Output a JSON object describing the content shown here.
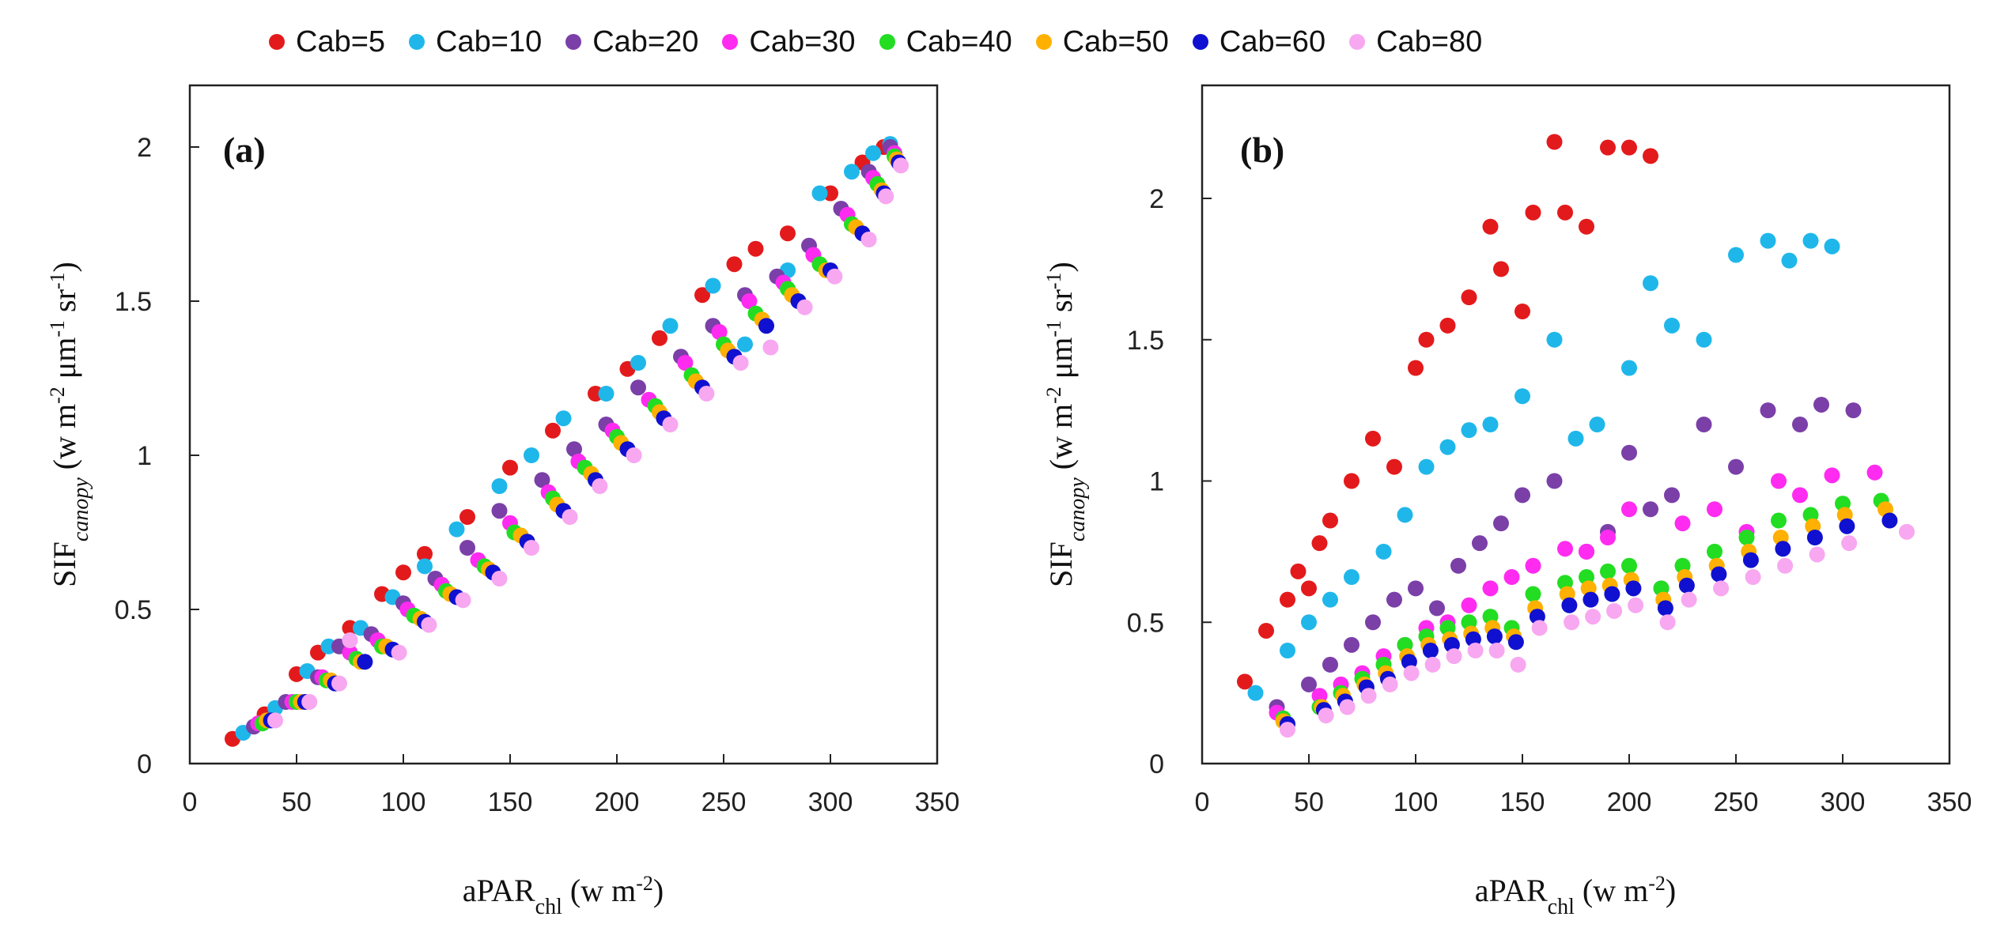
{
  "legend": [
    {
      "label": "Cab=5",
      "color": "#e31a1c"
    },
    {
      "label": "Cab=10",
      "color": "#1fb7ea"
    },
    {
      "label": "Cab=20",
      "color": "#7b3fa8"
    },
    {
      "label": "Cab=30",
      "color": "#ff2bf0"
    },
    {
      "label": "Cab=40",
      "color": "#22dd22"
    },
    {
      "label": "Cab=50",
      "color": "#ffb000"
    },
    {
      "label": "Cab=60",
      "color": "#1010d0"
    },
    {
      "label": "Cab=80",
      "color": "#f7a8f0"
    }
  ],
  "chart_data": [
    {
      "type": "scatter",
      "panel_label": "(a)",
      "xlabel_main": "aPAR",
      "xlabel_sub": "chl",
      "xlabel_unit": " (w m",
      "xlabel_sup": "-2",
      "xlabel_end": ")",
      "ylabel_main": "SIF",
      "ylabel_sub": "canopy",
      "ylabel_unit": " (w m",
      "ylabel_sup1": "-2",
      "ylabel_mid": " μm",
      "ylabel_sup2": "-1",
      "ylabel_mid2": " sr",
      "ylabel_sup3": "-1",
      "ylabel_end": ")",
      "xlim": [
        0,
        350
      ],
      "ylim": [
        0,
        2.2
      ],
      "xticks": [
        0,
        50,
        100,
        150,
        200,
        250,
        300,
        350
      ],
      "xtick_labels": [
        "0",
        "50",
        "100",
        "150",
        "200",
        "250",
        "300",
        "350"
      ],
      "yticks": [
        0,
        0.5,
        1,
        1.5,
        2
      ],
      "ytick_labels": [
        "0",
        "0.5",
        "1",
        "1.5",
        "2"
      ],
      "series": [
        {
          "name": "Cab=5",
          "x": [
            20,
            35,
            50,
            60,
            75,
            90,
            100,
            110,
            130,
            150,
            170,
            190,
            205,
            220,
            240,
            255,
            265,
            280,
            300,
            315,
            325
          ],
          "y": [
            0.08,
            0.16,
            0.29,
            0.36,
            0.44,
            0.55,
            0.62,
            0.68,
            0.8,
            0.96,
            1.08,
            1.2,
            1.28,
            1.38,
            1.52,
            1.62,
            1.67,
            1.72,
            1.85,
            1.95,
            2.0
          ]
        },
        {
          "name": "Cab=10",
          "x": [
            25,
            40,
            55,
            65,
            80,
            95,
            110,
            125,
            145,
            160,
            175,
            195,
            210,
            225,
            245,
            260,
            280,
            295,
            310,
            320,
            328
          ],
          "y": [
            0.1,
            0.18,
            0.3,
            0.38,
            0.44,
            0.54,
            0.64,
            0.76,
            0.9,
            1.0,
            1.12,
            1.2,
            1.3,
            1.42,
            1.55,
            1.36,
            1.6,
            1.85,
            1.92,
            1.98,
            2.01
          ]
        },
        {
          "name": "Cab=20",
          "x": [
            30,
            45,
            60,
            70,
            85,
            100,
            115,
            130,
            145,
            165,
            180,
            195,
            210,
            230,
            245,
            260,
            275,
            290,
            305,
            318,
            328
          ],
          "y": [
            0.12,
            0.2,
            0.28,
            0.38,
            0.42,
            0.52,
            0.6,
            0.7,
            0.82,
            0.92,
            1.02,
            1.1,
            1.22,
            1.32,
            1.42,
            1.52,
            1.58,
            1.68,
            1.8,
            1.92,
            2.0
          ]
        },
        {
          "name": "Cab=30",
          "x": [
            32,
            48,
            62,
            75,
            88,
            102,
            118,
            135,
            150,
            168,
            182,
            198,
            215,
            232,
            248,
            262,
            278,
            292,
            308,
            320,
            330
          ],
          "y": [
            0.13,
            0.2,
            0.28,
            0.36,
            0.4,
            0.5,
            0.58,
            0.66,
            0.78,
            0.88,
            0.98,
            1.08,
            1.18,
            1.3,
            1.4,
            1.5,
            1.56,
            1.65,
            1.78,
            1.9,
            1.98
          ]
        },
        {
          "name": "Cab=40",
          "x": [
            34,
            50,
            64,
            78,
            90,
            105,
            120,
            138,
            152,
            170,
            185,
            200,
            218,
            235,
            250,
            265,
            280,
            295,
            310,
            322,
            330
          ],
          "y": [
            0.13,
            0.2,
            0.27,
            0.34,
            0.38,
            0.48,
            0.56,
            0.64,
            0.75,
            0.86,
            0.96,
            1.06,
            1.16,
            1.26,
            1.36,
            1.46,
            1.54,
            1.62,
            1.75,
            1.88,
            1.97
          ]
        },
        {
          "name": "Cab=50",
          "x": [
            36,
            52,
            66,
            80,
            92,
            108,
            122,
            140,
            155,
            172,
            188,
            202,
            220,
            237,
            252,
            268,
            282,
            298,
            312,
            324,
            331
          ],
          "y": [
            0.14,
            0.2,
            0.27,
            0.33,
            0.38,
            0.47,
            0.55,
            0.63,
            0.74,
            0.84,
            0.94,
            1.04,
            1.14,
            1.24,
            1.34,
            1.44,
            1.52,
            1.6,
            1.74,
            1.86,
            1.96
          ]
        },
        {
          "name": "Cab=60",
          "x": [
            38,
            54,
            68,
            82,
            95,
            110,
            125,
            142,
            158,
            175,
            190,
            205,
            222,
            240,
            255,
            270,
            285,
            300,
            315,
            325,
            332
          ],
          "y": [
            0.14,
            0.2,
            0.26,
            0.33,
            0.37,
            0.46,
            0.54,
            0.62,
            0.72,
            0.82,
            0.92,
            1.02,
            1.12,
            1.22,
            1.32,
            1.42,
            1.5,
            1.6,
            1.72,
            1.85,
            1.95
          ]
        },
        {
          "name": "Cab=80",
          "x": [
            40,
            56,
            70,
            75,
            98,
            112,
            128,
            145,
            160,
            178,
            192,
            208,
            225,
            242,
            258,
            272,
            288,
            302,
            318,
            326,
            333
          ],
          "y": [
            0.14,
            0.2,
            0.26,
            0.4,
            0.36,
            0.45,
            0.53,
            0.6,
            0.7,
            0.8,
            0.9,
            1.0,
            1.1,
            1.2,
            1.3,
            1.35,
            1.48,
            1.58,
            1.7,
            1.84,
            1.94
          ]
        }
      ]
    },
    {
      "type": "scatter",
      "panel_label": "(b)",
      "xlabel_main": "aPAR",
      "xlabel_sub": "chl",
      "xlabel_unit": " (w m",
      "xlabel_sup": "-2",
      "xlabel_end": ")",
      "ylabel_main": "SIF",
      "ylabel_sub": "canopy",
      "ylabel_unit": " (w m",
      "ylabel_sup1": "-2",
      "ylabel_mid": " μm",
      "ylabel_sup2": "-1",
      "ylabel_mid2": " sr",
      "ylabel_sup3": "-1",
      "ylabel_end": ")",
      "xlim": [
        0,
        350
      ],
      "ylim": [
        0,
        2.4
      ],
      "xticks": [
        0,
        50,
        100,
        150,
        200,
        250,
        300,
        350
      ],
      "xtick_labels": [
        "0",
        "50",
        "100",
        "150",
        "200",
        "250",
        "300",
        "350"
      ],
      "yticks": [
        0,
        0.5,
        1,
        1.5,
        2
      ],
      "ytick_labels": [
        "0",
        "0.5",
        "1",
        "1.5",
        "2"
      ],
      "series": [
        {
          "name": "Cab=5",
          "x": [
            20,
            30,
            40,
            45,
            50,
            55,
            60,
            70,
            80,
            90,
            100,
            105,
            115,
            125,
            135,
            140,
            150,
            155,
            165,
            170,
            180,
            190,
            200,
            210
          ],
          "y": [
            0.29,
            0.47,
            0.58,
            0.68,
            0.62,
            0.78,
            0.86,
            1.0,
            1.15,
            1.05,
            1.4,
            1.5,
            1.55,
            1.65,
            1.9,
            1.75,
            1.6,
            1.95,
            2.2,
            1.95,
            1.9,
            2.18,
            2.18,
            2.15
          ]
        },
        {
          "name": "Cab=10",
          "x": [
            25,
            40,
            50,
            60,
            70,
            85,
            95,
            105,
            115,
            125,
            135,
            150,
            165,
            175,
            185,
            200,
            210,
            220,
            235,
            250,
            265,
            275,
            285,
            295
          ],
          "y": [
            0.25,
            0.4,
            0.5,
            0.58,
            0.66,
            0.75,
            0.88,
            1.05,
            1.12,
            1.18,
            1.2,
            1.3,
            1.5,
            1.15,
            1.2,
            1.4,
            1.7,
            1.55,
            1.5,
            1.8,
            1.85,
            1.78,
            1.85,
            1.83
          ]
        },
        {
          "name": "Cab=20",
          "x": [
            35,
            50,
            60,
            70,
            80,
            90,
            100,
            110,
            120,
            130,
            140,
            150,
            165,
            180,
            190,
            200,
            210,
            220,
            235,
            250,
            265,
            280,
            290,
            305
          ],
          "y": [
            0.2,
            0.28,
            0.35,
            0.42,
            0.5,
            0.58,
            0.62,
            0.55,
            0.7,
            0.78,
            0.85,
            0.95,
            1.0,
            0.75,
            0.82,
            1.1,
            0.9,
            0.95,
            1.2,
            1.05,
            1.25,
            1.2,
            1.27,
            1.25
          ]
        },
        {
          "name": "Cab=30",
          "x": [
            35,
            55,
            65,
            75,
            85,
            95,
            105,
            115,
            125,
            135,
            145,
            155,
            170,
            180,
            190,
            200,
            215,
            225,
            240,
            255,
            270,
            280,
            295,
            315
          ],
          "y": [
            0.18,
            0.24,
            0.28,
            0.32,
            0.38,
            0.42,
            0.48,
            0.5,
            0.56,
            0.62,
            0.66,
            0.7,
            0.76,
            0.75,
            0.8,
            0.9,
            0.62,
            0.85,
            0.9,
            0.82,
            1.0,
            0.95,
            1.02,
            1.03
          ]
        },
        {
          "name": "Cab=40",
          "x": [
            38,
            55,
            65,
            75,
            85,
            95,
            105,
            115,
            125,
            135,
            145,
            155,
            170,
            180,
            190,
            200,
            215,
            225,
            240,
            255,
            270,
            285,
            300,
            318
          ],
          "y": [
            0.16,
            0.2,
            0.25,
            0.3,
            0.35,
            0.42,
            0.45,
            0.48,
            0.5,
            0.52,
            0.48,
            0.6,
            0.64,
            0.66,
            0.68,
            0.7,
            0.62,
            0.7,
            0.75,
            0.8,
            0.86,
            0.88,
            0.92,
            0.93
          ]
        },
        {
          "name": "Cab=50",
          "x": [
            38,
            56,
            66,
            76,
            86,
            96,
            106,
            116,
            126,
            136,
            146,
            156,
            171,
            181,
            191,
            201,
            216,
            226,
            241,
            256,
            271,
            286,
            301,
            320
          ],
          "y": [
            0.15,
            0.2,
            0.24,
            0.28,
            0.32,
            0.38,
            0.42,
            0.44,
            0.46,
            0.48,
            0.45,
            0.55,
            0.6,
            0.62,
            0.63,
            0.65,
            0.58,
            0.66,
            0.7,
            0.75,
            0.8,
            0.84,
            0.88,
            0.9
          ]
        },
        {
          "name": "Cab=60",
          "x": [
            40,
            57,
            67,
            77,
            87,
            97,
            107,
            117,
            127,
            137,
            147,
            157,
            172,
            182,
            192,
            202,
            217,
            227,
            242,
            257,
            272,
            287,
            302,
            322
          ],
          "y": [
            0.14,
            0.19,
            0.22,
            0.27,
            0.3,
            0.36,
            0.4,
            0.42,
            0.44,
            0.45,
            0.43,
            0.52,
            0.56,
            0.58,
            0.6,
            0.62,
            0.55,
            0.63,
            0.67,
            0.72,
            0.76,
            0.8,
            0.84,
            0.86
          ]
        },
        {
          "name": "Cab=80",
          "x": [
            40,
            58,
            68,
            78,
            88,
            98,
            108,
            118,
            128,
            138,
            148,
            158,
            173,
            183,
            193,
            203,
            218,
            228,
            243,
            258,
            273,
            288,
            303,
            330
          ],
          "y": [
            0.12,
            0.17,
            0.2,
            0.24,
            0.28,
            0.32,
            0.35,
            0.38,
            0.4,
            0.4,
            0.35,
            0.48,
            0.5,
            0.52,
            0.54,
            0.56,
            0.5,
            0.58,
            0.62,
            0.66,
            0.7,
            0.74,
            0.78,
            0.82
          ]
        }
      ]
    }
  ]
}
